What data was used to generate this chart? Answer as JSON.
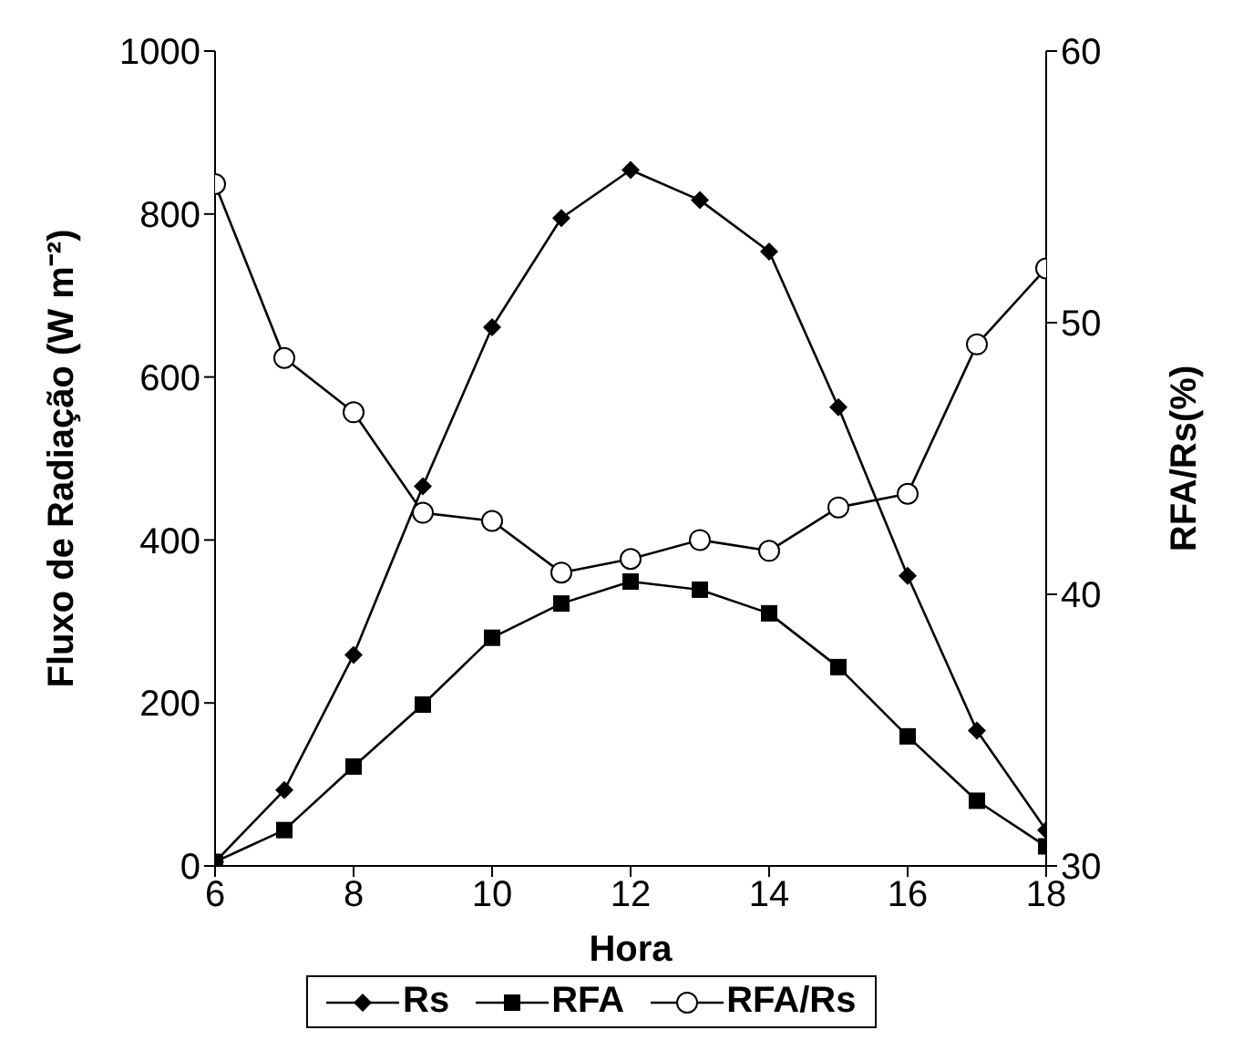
{
  "chart_data": {
    "type": "line",
    "xlabel": "Hora",
    "ylabel": "Fluxo de Radiação (W m⁻²)",
    "y2label": "RFA/Rs(%)",
    "x": [
      6,
      7,
      8,
      9,
      10,
      11,
      12,
      13,
      14,
      15,
      16,
      17,
      18
    ],
    "series": [
      {
        "name": "Rs",
        "color": "#000000",
        "marker": "diamond",
        "values": [
          5,
          93,
          259,
          466,
          661,
          795,
          854,
          817,
          754,
          563,
          356,
          166,
          44
        ]
      },
      {
        "name": "RFA",
        "color": "#000000",
        "marker": "square",
        "values": [
          5,
          44,
          122,
          198,
          280,
          322,
          349,
          339,
          310,
          244,
          159,
          80,
          24
        ]
      },
      {
        "name": "RFA/Rs",
        "color": "#000000",
        "marker": "circle",
        "axis": "y2",
        "values": [
          55.1,
          48.7,
          46.7,
          43.0,
          42.7,
          40.8,
          41.3,
          42.0,
          41.6,
          43.2,
          43.7,
          49.2,
          52.0
        ]
      }
    ],
    "xlim": [
      6,
      18
    ],
    "xticks": [
      6,
      8,
      10,
      12,
      14,
      16,
      18
    ],
    "ylim": [
      0,
      1000
    ],
    "yticks": [
      0,
      200,
      400,
      600,
      800,
      1000
    ],
    "y2lim": [
      30,
      60
    ],
    "y2ticks": [
      30,
      40,
      50,
      60
    ],
    "legend": "bottom",
    "grid": false,
    "line_style": "solid"
  }
}
